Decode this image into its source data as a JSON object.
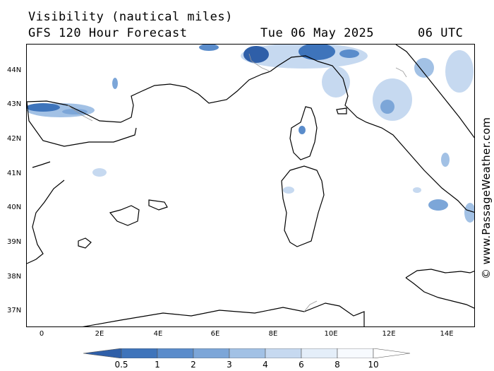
{
  "header": {
    "title": "Visibility (nautical miles)",
    "model": "GFS 120 Hour Forecast",
    "date": "Tue 06 May 2025",
    "time": "06 UTC"
  },
  "credit": "© www.PassageWeather.com",
  "map": {
    "lat_range": [
      36.5,
      44.8
    ],
    "lon_range": [
      -0.5,
      15.0
    ],
    "lat_labels": [
      "37N",
      "38N",
      "39N",
      "40N",
      "41N",
      "42N",
      "43N",
      "44N"
    ],
    "lon_labels": [
      "0",
      "2E",
      "4E",
      "6E",
      "8E",
      "10E",
      "12E",
      "14E"
    ],
    "land_color": "#ffffff",
    "coast_color": "#000000",
    "border_color": "#999999"
  },
  "legend": {
    "labels": [
      "0.5",
      "1",
      "2",
      "3",
      "4",
      "6",
      "8",
      "10"
    ],
    "colors": [
      "#2f5fa8",
      "#3e74bb",
      "#5a8ccb",
      "#7ca6d8",
      "#a2c1e5",
      "#c6d9f0",
      "#e4eef9",
      "#f7fafe"
    ]
  }
}
